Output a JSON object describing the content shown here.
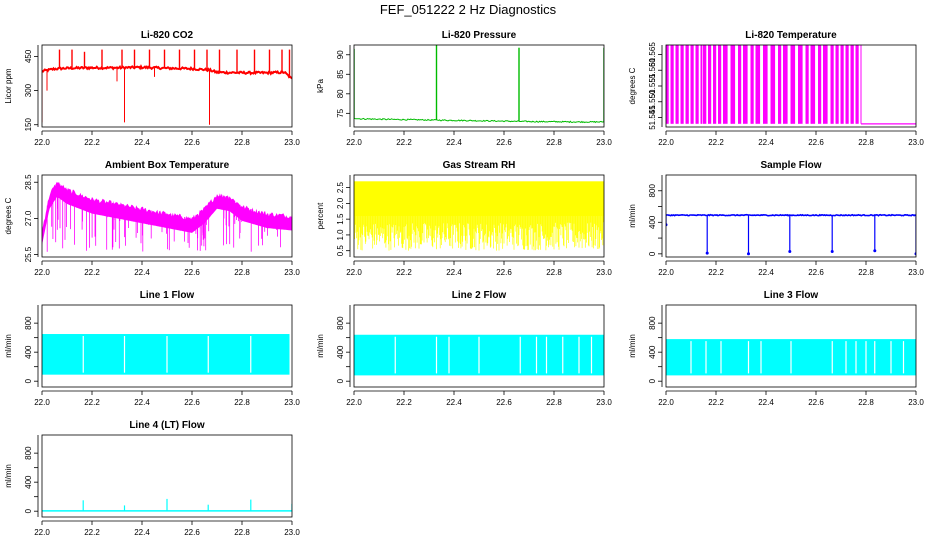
{
  "figure_title": "FEF_051222  2 Hz Diagnostics",
  "colors": {
    "co2": "#ff0000",
    "pressure": "#00bb00",
    "temperature": "#ff00ff",
    "ambient": "#ff00ff",
    "rh": "#ffff00",
    "sample_flow": "#0000ff",
    "line_flow": "#00ffff",
    "axis": "#000000"
  },
  "chart_data": [
    {
      "id": "co2",
      "type": "line",
      "title": "Li-820 CO2",
      "ylabel": "Licor ppm",
      "xlim": [
        22.0,
        23.0
      ],
      "ylim": [
        140,
        500
      ],
      "x_ticks": [
        22.0,
        22.2,
        22.4,
        22.6,
        22.8,
        23.0
      ],
      "x_tick_labels": [
        "22.0",
        "22.2",
        "22.4",
        "22.6",
        "22.8",
        "23.0"
      ],
      "y_ticks": [
        150,
        300,
        450
      ],
      "y_tick_labels": [
        "150",
        "300",
        "450"
      ],
      "color_key": "co2",
      "series": {
        "baseline_x": [
          22.0,
          22.05,
          22.1,
          22.2,
          22.3,
          22.4,
          22.5,
          22.6,
          22.67,
          22.7,
          22.8,
          22.9,
          22.97,
          23.0
        ],
        "baseline_y": [
          385,
          395,
          398,
          400,
          400,
          402,
          398,
          396,
          390,
          380,
          378,
          378,
          380,
          350
        ],
        "noise": 10,
        "spikes_up_x": [
          22.07,
          22.12,
          22.17,
          22.24,
          22.32,
          22.37,
          22.43,
          22.49,
          22.55,
          22.61,
          22.66,
          22.71,
          22.78,
          22.85,
          22.91,
          22.96,
          22.99
        ],
        "spikes_up_y": [
          480,
          480,
          470,
          480,
          480,
          480,
          480,
          480,
          480,
          480,
          480,
          480,
          480,
          480,
          480,
          480,
          480
        ],
        "spikes_down_x": [
          22.0,
          22.02,
          22.33,
          22.67,
          22.3,
          22.45
        ],
        "spikes_down_y": [
          160,
          300,
          160,
          150,
          340,
          360
        ]
      }
    },
    {
      "id": "pressure",
      "type": "line",
      "title": "Li-820 Pressure",
      "ylabel": "kPa",
      "xlim": [
        22.0,
        23.0
      ],
      "ylim": [
        71.5,
        92.5
      ],
      "x_ticks": [
        22.0,
        22.2,
        22.4,
        22.6,
        22.8,
        23.0
      ],
      "x_tick_labels": [
        "22.0",
        "22.2",
        "22.4",
        "22.6",
        "22.8",
        "23.0"
      ],
      "y_ticks": [
        75,
        80,
        85,
        90
      ],
      "y_tick_labels": [
        "75",
        "80",
        "85",
        "90"
      ],
      "color_key": "pressure",
      "series": {
        "baseline_x": [
          22.0,
          22.02,
          22.1,
          22.3,
          22.5,
          22.7,
          22.9,
          23.0
        ],
        "baseline_y": [
          73.8,
          73.6,
          73.5,
          73.3,
          73.1,
          72.9,
          72.8,
          72.8
        ],
        "noise": 0.3,
        "spikes_up_x": [
          22.0,
          22.33,
          22.66,
          23.0
        ],
        "spikes_up_y": [
          91.5,
          92.5,
          91.8,
          91.8
        ],
        "spikes_down_x": [],
        "spikes_down_y": []
      }
    },
    {
      "id": "temperature",
      "type": "line",
      "title": "Li-820 Temperature",
      "ylabel": "degrees C",
      "xlim": [
        22.0,
        23.0
      ],
      "ylim": [
        51.542,
        51.568
      ],
      "x_ticks": [
        22.0,
        22.2,
        22.4,
        22.6,
        22.8,
        23.0
      ],
      "x_tick_labels": [
        "22.0",
        "22.2",
        "22.4",
        "22.6",
        "22.8",
        "23.0"
      ],
      "y_ticks": [
        51.545,
        51.55,
        51.555,
        51.56,
        51.565
      ],
      "y_tick_labels": [
        "51.545",
        "51.550",
        "51.555",
        "51.560",
        "51.565"
      ],
      "color_key": "temperature",
      "series": {
        "low": 51.543,
        "high": 51.568,
        "toggle_x": [
          22.0,
          22.02,
          22.04,
          22.06,
          22.08,
          22.1,
          22.12,
          22.14,
          22.15,
          22.17,
          22.19,
          22.21,
          22.23,
          22.26,
          22.29,
          22.31,
          22.34,
          22.36,
          22.39,
          22.42,
          22.45,
          22.47,
          22.5,
          22.53,
          22.56,
          22.58,
          22.61,
          22.63,
          22.66,
          22.68,
          22.7,
          22.72,
          22.74,
          22.76,
          22.78
        ],
        "end_x": 22.78
      }
    },
    {
      "id": "ambient",
      "type": "line",
      "title": "Ambient Box Temperature",
      "ylabel": "degrees C",
      "xlim": [
        22.0,
        23.0
      ],
      "ylim": [
        25.4,
        28.8
      ],
      "x_ticks": [
        22.0,
        22.2,
        22.4,
        22.6,
        22.8,
        23.0
      ],
      "x_tick_labels": [
        "22.0",
        "22.2",
        "22.4",
        "22.6",
        "22.8",
        "23.0"
      ],
      "y_ticks": [
        25.5,
        27.0,
        28.5
      ],
      "y_tick_labels": [
        "25.5",
        "27.0",
        "28.5"
      ],
      "color_key": "ambient",
      "series": {
        "top_x": [
          22.0,
          22.03,
          22.06,
          22.1,
          22.2,
          22.3,
          22.4,
          22.5,
          22.6,
          22.65,
          22.7,
          22.75,
          22.8,
          22.9,
          23.0
        ],
        "top_y": [
          26.5,
          28.0,
          28.5,
          28.2,
          27.8,
          27.6,
          27.4,
          27.2,
          27.0,
          27.4,
          28.0,
          27.9,
          27.5,
          27.2,
          27.1
        ],
        "band": 0.6,
        "dip_min": 25.6
      }
    },
    {
      "id": "rh",
      "type": "line",
      "title": "Gas Stream RH",
      "ylabel": "percent",
      "xlim": [
        22.0,
        23.0
      ],
      "ylim": [
        0.3,
        2.9
      ],
      "x_ticks": [
        22.0,
        22.2,
        22.4,
        22.6,
        22.8,
        23.0
      ],
      "x_tick_labels": [
        "22.0",
        "22.2",
        "22.4",
        "22.6",
        "22.8",
        "23.0"
      ],
      "y_ticks": [
        0.5,
        1.0,
        1.5,
        2.0,
        2.5
      ],
      "y_tick_labels": [
        "0.5",
        "1.0",
        "1.5",
        "2.0",
        "2.5"
      ],
      "color_key": "rh",
      "series": {
        "band_top": 2.7,
        "band_bottom": 0.5,
        "solid_from": 1.6
      }
    },
    {
      "id": "sample_flow",
      "type": "line",
      "title": "Sample Flow",
      "ylabel": "ml/min",
      "xlim": [
        22.0,
        23.0
      ],
      "ylim": [
        -40,
        1000
      ],
      "x_ticks": [
        22.0,
        22.2,
        22.4,
        22.6,
        22.8,
        23.0
      ],
      "x_tick_labels": [
        "22.0",
        "22.2",
        "22.4",
        "22.6",
        "22.8",
        "23.0"
      ],
      "y_ticks": [
        0,
        200,
        400,
        600,
        800
      ],
      "y_tick_labels": [
        "0",
        "",
        "400",
        "",
        "800"
      ],
      "color_key": "sample_flow",
      "series": {
        "level": 490,
        "noise": 12,
        "dips_x": [
          22.0,
          22.165,
          22.33,
          22.495,
          22.665,
          22.835,
          23.0
        ],
        "dips_y": [
          370,
          10,
          0,
          30,
          30,
          40,
          0
        ]
      }
    },
    {
      "id": "line1",
      "type": "line",
      "title": "Line 1 Flow",
      "ylabel": "ml/min",
      "xlim": [
        22.0,
        23.0
      ],
      "ylim": [
        -80,
        1050
      ],
      "x_ticks": [
        22.0,
        22.2,
        22.4,
        22.6,
        22.8,
        23.0
      ],
      "x_tick_labels": [
        "22.0",
        "22.2",
        "22.4",
        "22.6",
        "22.8",
        "23.0"
      ],
      "y_ticks": [
        0,
        200,
        400,
        600,
        800
      ],
      "y_tick_labels": [
        "0",
        "",
        "400",
        "",
        "800"
      ],
      "color_key": "line_flow",
      "series": {
        "top": 650,
        "bottom": 90,
        "gaps_x": [
          22.165,
          22.33,
          22.5,
          22.665,
          22.835
        ],
        "end_x": 22.99
      }
    },
    {
      "id": "line2",
      "type": "line",
      "title": "Line 2 Flow",
      "ylabel": "ml/min",
      "xlim": [
        22.0,
        23.0
      ],
      "ylim": [
        -80,
        1050
      ],
      "x_ticks": [
        22.0,
        22.2,
        22.4,
        22.6,
        22.8,
        23.0
      ],
      "x_tick_labels": [
        "22.0",
        "22.2",
        "22.4",
        "22.6",
        "22.8",
        "23.0"
      ],
      "y_ticks": [
        0,
        200,
        400,
        600,
        800
      ],
      "y_tick_labels": [
        "0",
        "",
        "400",
        "",
        "800"
      ],
      "color_key": "line_flow",
      "series": {
        "top": 640,
        "bottom": 80,
        "gaps_x": [
          22.165,
          22.33,
          22.38,
          22.5,
          22.665,
          22.73,
          22.77,
          22.835,
          22.9,
          22.95
        ],
        "end_x": 23.0
      }
    },
    {
      "id": "line3",
      "type": "line",
      "title": "Line 3 Flow",
      "ylabel": "ml/min",
      "xlim": [
        22.0,
        23.0
      ],
      "ylim": [
        -80,
        1050
      ],
      "x_ticks": [
        22.0,
        22.2,
        22.4,
        22.6,
        22.8,
        23.0
      ],
      "x_tick_labels": [
        "22.0",
        "22.2",
        "22.4",
        "22.6",
        "22.8",
        "23.0"
      ],
      "y_ticks": [
        0,
        200,
        400,
        600,
        800
      ],
      "y_tick_labels": [
        "0",
        "",
        "400",
        "",
        "800"
      ],
      "color_key": "line_flow",
      "series": {
        "top": 580,
        "bottom": 80,
        "gaps_x": [
          22.1,
          22.16,
          22.22,
          22.33,
          22.38,
          22.5,
          22.665,
          22.72,
          22.76,
          22.8,
          22.835,
          22.9,
          22.95
        ],
        "end_x": 23.0
      }
    },
    {
      "id": "line4",
      "type": "line",
      "title": "Line 4 (LT) Flow",
      "ylabel": "ml/min",
      "xlim": [
        22.0,
        23.0
      ],
      "ylim": [
        -80,
        1050
      ],
      "x_ticks": [
        22.0,
        22.2,
        22.4,
        22.6,
        22.8,
        23.0
      ],
      "x_tick_labels": [
        "22.0",
        "22.2",
        "22.4",
        "22.6",
        "22.8",
        "23.0"
      ],
      "y_ticks": [
        0,
        200,
        400,
        600,
        800
      ],
      "y_tick_labels": [
        "0",
        "",
        "400",
        "",
        "800"
      ],
      "color_key": "line_flow",
      "series": {
        "level": 5,
        "spikes_x": [
          22.165,
          22.33,
          22.5,
          22.665,
          22.835,
          23.0
        ],
        "spikes_y": [
          150,
          80,
          170,
          90,
          160,
          100
        ]
      }
    }
  ]
}
